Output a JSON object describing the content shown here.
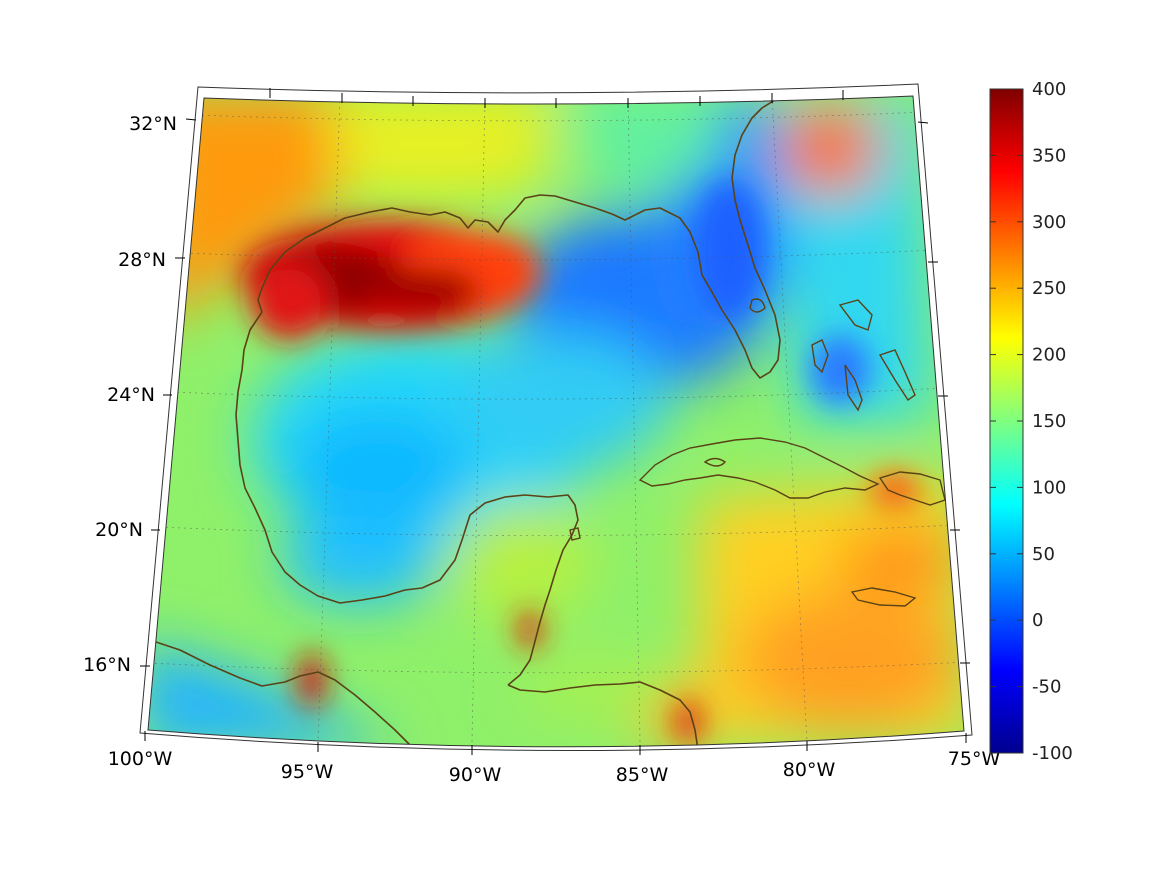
{
  "map": {
    "region": "Gulf of Mexico and western Caribbean",
    "projection": "conic",
    "lon_range": [
      -100,
      -75
    ],
    "lat_range": [
      14,
      33
    ],
    "lon_labels": [
      "100°W",
      "95°W",
      "90°W",
      "85°W",
      "80°W",
      "75°W"
    ],
    "lat_labels": [
      "32°N",
      "28°N",
      "24°N",
      "20°N",
      "16°N"
    ],
    "coastline_color": "#5a4216",
    "gridlines": true
  },
  "colorbar": {
    "colormap": "jet",
    "min": -100,
    "max": 400,
    "ticks": [
      "400",
      "350",
      "300",
      "250",
      "200",
      "150",
      "100",
      "50",
      "0",
      "-50",
      "-100"
    ]
  },
  "field_features": [
    {
      "name": "northern Gulf shelf maximum",
      "value": 380
    },
    {
      "name": "eastern Gulf / Florida minimum",
      "value": 20
    },
    {
      "name": "central Gulf",
      "value": 110
    },
    {
      "name": "Caribbean east of 82°W",
      "value": 240
    },
    {
      "name": "Georgia coast north of 30°N",
      "value": 300
    }
  ]
}
